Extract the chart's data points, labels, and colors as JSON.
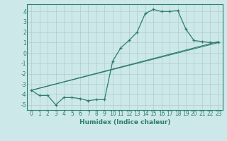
{
  "xlabel": "Humidex (Indice chaleur)",
  "ylabel": "",
  "background_color": "#cce8e8",
  "line_color": "#2e7d6e",
  "xlim": [
    -0.5,
    23.5
  ],
  "ylim": [
    -5.5,
    4.7
  ],
  "yticks": [
    -5,
    -4,
    -3,
    -2,
    -1,
    0,
    1,
    2,
    3,
    4
  ],
  "xticks": [
    0,
    1,
    2,
    3,
    4,
    5,
    6,
    7,
    8,
    9,
    10,
    11,
    12,
    13,
    14,
    15,
    16,
    17,
    18,
    19,
    20,
    21,
    22,
    23
  ],
  "xtick_labels": [
    "0",
    "1",
    "2",
    "3",
    "4",
    "5",
    "6",
    "7",
    "8",
    "9",
    "10",
    "11",
    "12",
    "13",
    "14",
    "15",
    "16",
    "17",
    "18",
    "19",
    "20",
    "21",
    "22",
    "23"
  ],
  "series_main": {
    "x": [
      0,
      1,
      2,
      3,
      4,
      5,
      6,
      7,
      8,
      9,
      10,
      11,
      12,
      13,
      14,
      15,
      16,
      17,
      18,
      19,
      20,
      21,
      22,
      23
    ],
    "y": [
      -3.6,
      -4.1,
      -4.1,
      -5.0,
      -4.3,
      -4.3,
      -4.4,
      -4.6,
      -4.5,
      -4.5,
      -0.8,
      0.5,
      1.2,
      2.0,
      3.8,
      4.2,
      4.0,
      4.0,
      4.1,
      2.3,
      1.2,
      1.1,
      1.0,
      1.0
    ]
  },
  "series_line1": {
    "x": [
      0,
      23
    ],
    "y": [
      -3.6,
      1.1
    ]
  },
  "series_line2": {
    "x": [
      0,
      23
    ],
    "y": [
      -3.6,
      1.0
    ]
  },
  "grid_color": "#b0cccc",
  "tick_fontsize": 5.5,
  "xlabel_fontsize": 6.5
}
